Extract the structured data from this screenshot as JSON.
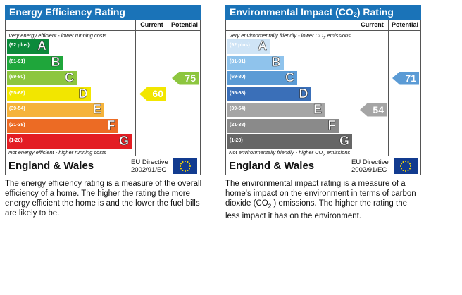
{
  "energy": {
    "title": "Energy Efficiency Rating",
    "col_current": "Current",
    "col_potential": "Potential",
    "note_top": "Very energy efficient - lower running costs",
    "note_bottom": "Not energy efficient - higher running costs",
    "bands": [
      {
        "range": "(92 plus)",
        "letter": "A",
        "color": "#0c8a3b"
      },
      {
        "range": "(81-91)",
        "letter": "B",
        "color": "#1fa63b"
      },
      {
        "range": "(69-80)",
        "letter": "C",
        "color": "#8dc63f"
      },
      {
        "range": "(55-68)",
        "letter": "D",
        "color": "#f2e600"
      },
      {
        "range": "(39-54)",
        "letter": "E",
        "color": "#f5b33b"
      },
      {
        "range": "(21-38)",
        "letter": "F",
        "color": "#ec6b24"
      },
      {
        "range": "(1-20)",
        "letter": "G",
        "color": "#e31d23"
      }
    ],
    "current": {
      "value": "60",
      "band": "D",
      "color": "#f2e600"
    },
    "potential": {
      "value": "75",
      "band": "C",
      "color": "#8dc63f"
    },
    "footer_name": "England & Wales",
    "eu_line1": "EU Directive",
    "eu_line2": "2002/91/EC",
    "description": "The energy efficiency rating is a measure of the overall efficiency of a home. The higher the rating the more energy efficient the home is and the lower the fuel bills are likely to be."
  },
  "environment": {
    "title_pre": "Environmental Impact (CO",
    "title_sub": "2",
    "title_post": ") Rating",
    "col_current": "Current",
    "col_potential": "Potential",
    "note_top_pre": "Very environmentally friendly - lower CO",
    "note_top_sub": "2",
    "note_top_post": " emissions",
    "note_bottom_pre": "Not environmentally friendly - higher CO",
    "note_bottom_sub": "2",
    "note_bottom_post": " emissions",
    "bands": [
      {
        "range": "(92 plus)",
        "letter": "A",
        "color": "#cfe4f6"
      },
      {
        "range": "(81-91)",
        "letter": "B",
        "color": "#8fc3ec"
      },
      {
        "range": "(69-80)",
        "letter": "C",
        "color": "#5b9bd5"
      },
      {
        "range": "(55-68)",
        "letter": "D",
        "color": "#3a6fb8"
      },
      {
        "range": "(39-54)",
        "letter": "E",
        "color": "#a5a5a5"
      },
      {
        "range": "(21-38)",
        "letter": "F",
        "color": "#8a8a8a"
      },
      {
        "range": "(1-20)",
        "letter": "G",
        "color": "#666666"
      }
    ],
    "current": {
      "value": "54",
      "band": "E",
      "color": "#a5a5a5"
    },
    "potential": {
      "value": "71",
      "band": "C",
      "color": "#5b9bd5"
    },
    "footer_name": "England & Wales",
    "eu_line1": "EU Directive",
    "eu_line2": "2002/91/EC",
    "description_pre": "The environmental impact rating is a measure of a home's impact on the environment in terms of carbon dioxide (CO",
    "description_sub": "2",
    "description_post": " ) emissions. The higher the rating the less impact it has on the environment."
  }
}
